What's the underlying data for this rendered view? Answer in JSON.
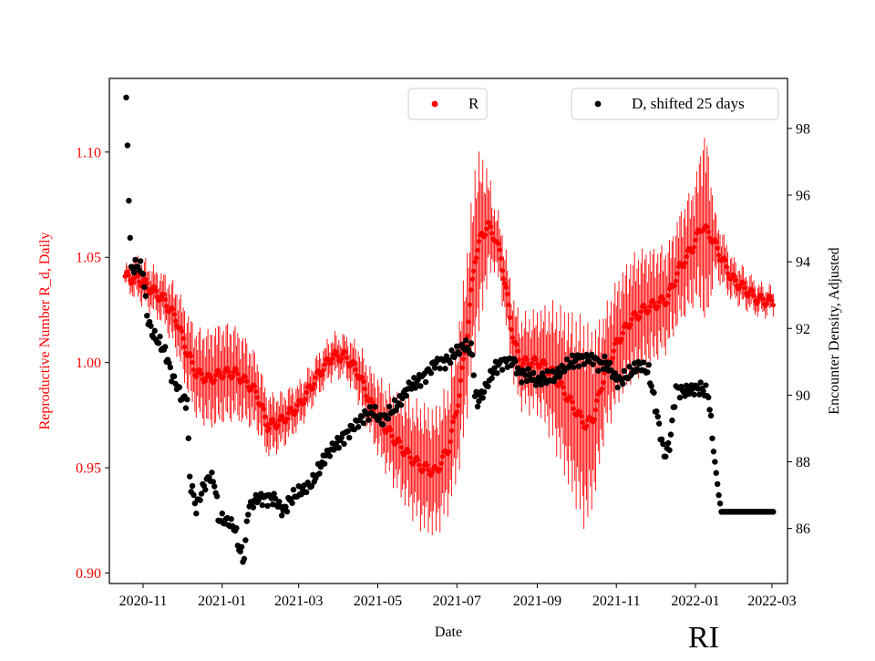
{
  "chart_data": {
    "type": "scatter",
    "xlabel": "Date",
    "y_left_label": "Reproductive Number R_d, Daily",
    "y_right_label": "Encounter Density, Adjusted",
    "corner_label": "RI",
    "x_ticks": [
      "2020-11",
      "2021-01",
      "2021-03",
      "2021-05",
      "2021-07",
      "2021-09",
      "2021-11",
      "2022-01",
      "2022-03"
    ],
    "x_tick_days": [
      14,
      75,
      134,
      195,
      256,
      318,
      379,
      440,
      499
    ],
    "x_range_days": [
      -12,
      511
    ],
    "y_left_ticks": [
      "0.90",
      "0.95",
      "1.00",
      "1.05",
      "1.10"
    ],
    "y_left_range": [
      0.895,
      1.135
    ],
    "y_right_ticks": [
      "86",
      "88",
      "90",
      "92",
      "94",
      "96",
      "98"
    ],
    "y_right_range": [
      84.35,
      99.5
    ],
    "colors": {
      "r_series": "#ff0000",
      "d_series": "#000000",
      "text_left": "#ff0000",
      "text_right": "#000000"
    },
    "legend_r": {
      "label": "R",
      "position": "top-center"
    },
    "legend_d": {
      "label": "D, shifted 25 days",
      "position": "top-right"
    },
    "series_R": {
      "name": "R",
      "x_range": [
        0,
        500
      ],
      "knots": [
        [
          0,
          1.041
        ],
        [
          5,
          1.04
        ],
        [
          10,
          1.04
        ],
        [
          20,
          1.035
        ],
        [
          30,
          1.03
        ],
        [
          40,
          1.02
        ],
        [
          48,
          1.005
        ],
        [
          55,
          0.995
        ],
        [
          65,
          0.992
        ],
        [
          75,
          0.995
        ],
        [
          85,
          0.995
        ],
        [
          95,
          0.99
        ],
        [
          102,
          0.985
        ],
        [
          110,
          0.97
        ],
        [
          120,
          0.972
        ],
        [
          135,
          0.98
        ],
        [
          150,
          0.995
        ],
        [
          160,
          1.003
        ],
        [
          170,
          1.003
        ],
        [
          180,
          0.995
        ],
        [
          190,
          0.98
        ],
        [
          200,
          0.97
        ],
        [
          210,
          0.962
        ],
        [
          220,
          0.955
        ],
        [
          230,
          0.95
        ],
        [
          240,
          0.948
        ],
        [
          250,
          0.96
        ],
        [
          258,
          0.985
        ],
        [
          265,
          1.02
        ],
        [
          270,
          1.05
        ],
        [
          275,
          1.06
        ],
        [
          280,
          1.065
        ],
        [
          285,
          1.06
        ],
        [
          290,
          1.05
        ],
        [
          295,
          1.03
        ],
        [
          300,
          1.01
        ],
        [
          305,
          1.0
        ],
        [
          312,
          1.0
        ],
        [
          320,
          1.0
        ],
        [
          330,
          0.995
        ],
        [
          340,
          0.985
        ],
        [
          350,
          0.975
        ],
        [
          356,
          0.97
        ],
        [
          362,
          0.975
        ],
        [
          370,
          0.995
        ],
        [
          380,
          1.01
        ],
        [
          390,
          1.02
        ],
        [
          400,
          1.025
        ],
        [
          410,
          1.028
        ],
        [
          418,
          1.03
        ],
        [
          428,
          1.045
        ],
        [
          438,
          1.055
        ],
        [
          445,
          1.065
        ],
        [
          452,
          1.06
        ],
        [
          460,
          1.05
        ],
        [
          468,
          1.04
        ],
        [
          478,
          1.035
        ],
        [
          488,
          1.03
        ],
        [
          500,
          1.029
        ]
      ],
      "amplitude_knots": [
        [
          0,
          0.004
        ],
        [
          8,
          0.01
        ],
        [
          30,
          0.012
        ],
        [
          50,
          0.02
        ],
        [
          70,
          0.025
        ],
        [
          90,
          0.022
        ],
        [
          110,
          0.015
        ],
        [
          140,
          0.01
        ],
        [
          170,
          0.01
        ],
        [
          200,
          0.02
        ],
        [
          230,
          0.03
        ],
        [
          250,
          0.03
        ],
        [
          265,
          0.04
        ],
        [
          272,
          0.045
        ],
        [
          285,
          0.015
        ],
        [
          300,
          0.02
        ],
        [
          320,
          0.025
        ],
        [
          340,
          0.04
        ],
        [
          355,
          0.05
        ],
        [
          370,
          0.03
        ],
        [
          395,
          0.03
        ],
        [
          420,
          0.025
        ],
        [
          440,
          0.03
        ],
        [
          448,
          0.05
        ],
        [
          455,
          0.015
        ],
        [
          470,
          0.01
        ],
        [
          500,
          0.006
        ]
      ]
    },
    "series_D": {
      "name": "D, shifted 25 days",
      "x_range": [
        0,
        500
      ],
      "knots": [
        [
          1,
          98.8
        ],
        [
          2,
          97.5
        ],
        [
          3,
          96
        ],
        [
          4,
          94.6
        ],
        [
          5,
          93.8
        ],
        [
          10,
          93.9
        ],
        [
          14,
          93.7
        ],
        [
          16,
          92.8
        ],
        [
          18,
          92.2
        ],
        [
          22,
          91.8
        ],
        [
          28,
          91.5
        ],
        [
          32,
          91.2
        ],
        [
          36,
          90.6
        ],
        [
          40,
          90.3
        ],
        [
          44,
          89.9
        ],
        [
          48,
          89.8
        ],
        [
          50,
          87.5
        ],
        [
          55,
          86.6
        ],
        [
          60,
          87.2
        ],
        [
          66,
          87.6
        ],
        [
          70,
          87.2
        ],
        [
          72,
          86.3
        ],
        [
          80,
          86.2
        ],
        [
          85,
          86
        ],
        [
          88,
          85.4
        ],
        [
          92,
          85.1
        ],
        [
          95,
          86.6
        ],
        [
          102,
          86.9
        ],
        [
          115,
          86.9
        ],
        [
          122,
          86.5
        ],
        [
          128,
          86.9
        ],
        [
          135,
          87.1
        ],
        [
          140,
          87.2
        ],
        [
          145,
          87.4
        ],
        [
          150,
          87.8
        ],
        [
          155,
          88.2
        ],
        [
          165,
          88.6
        ],
        [
          175,
          89
        ],
        [
          185,
          89.4
        ],
        [
          192,
          89.5
        ],
        [
          198,
          89.2
        ],
        [
          205,
          89.5
        ],
        [
          212,
          89.8
        ],
        [
          218,
          90.2
        ],
        [
          225,
          90.4
        ],
        [
          232,
          90.6
        ],
        [
          240,
          91
        ],
        [
          248,
          91
        ],
        [
          256,
          91.3
        ],
        [
          262,
          91.5
        ],
        [
          268,
          91.3
        ],
        [
          270,
          90
        ],
        [
          272,
          89.8
        ],
        [
          278,
          90.2
        ],
        [
          285,
          90.8
        ],
        [
          292,
          91
        ],
        [
          300,
          91
        ],
        [
          305,
          90.6
        ],
        [
          312,
          90.6
        ],
        [
          318,
          90.4
        ],
        [
          322,
          90.5
        ],
        [
          330,
          90.5
        ],
        [
          338,
          90.8
        ],
        [
          345,
          91
        ],
        [
          352,
          91.1
        ],
        [
          358,
          91.1
        ],
        [
          362,
          91.1
        ],
        [
          366,
          90.9
        ],
        [
          370,
          91
        ],
        [
          374,
          90.8
        ],
        [
          380,
          90.4
        ],
        [
          388,
          90.6
        ],
        [
          396,
          90.9
        ],
        [
          404,
          90.7
        ],
        [
          410,
          89.5
        ],
        [
          416,
          88.2
        ],
        [
          420,
          88.5
        ],
        [
          425,
          90.2
        ],
        [
          430,
          90.1
        ],
        [
          440,
          90.2
        ],
        [
          445,
          90.2
        ],
        [
          450,
          90
        ],
        [
          455,
          88
        ],
        [
          458,
          87
        ],
        [
          460,
          86.5
        ],
        [
          470,
          86.5
        ],
        [
          500,
          86.5
        ]
      ],
      "noise": 0.14
    }
  }
}
